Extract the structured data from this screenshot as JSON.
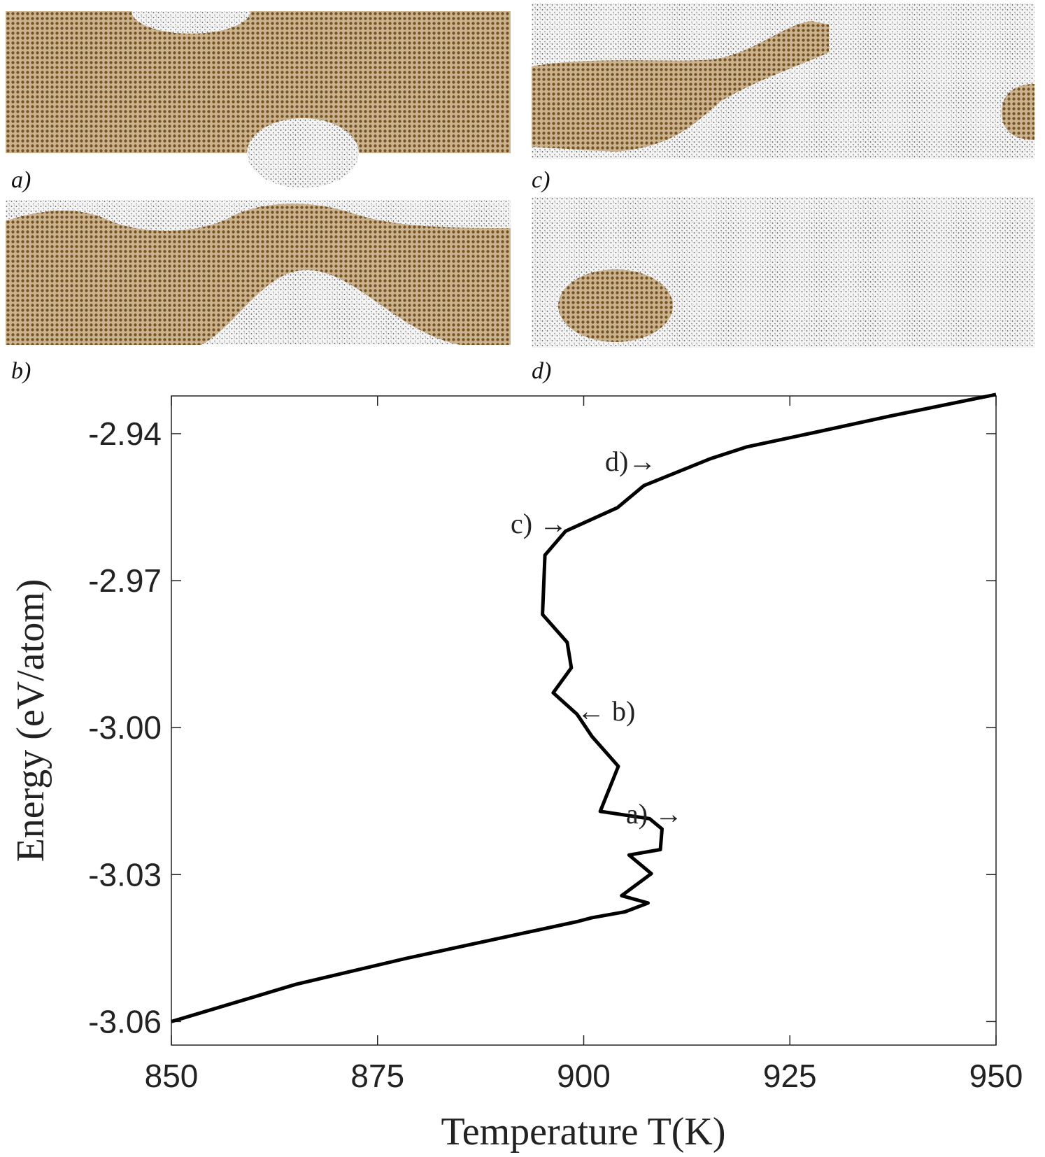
{
  "panels": [
    "a)",
    "b)",
    "c)",
    "d)"
  ],
  "chart_data": {
    "type": "line",
    "xlabel": "Temperature T(K)",
    "ylabel": "Energy (eV/atom)",
    "x": [
      850,
      865.1,
      878.5,
      892.0,
      899.2,
      901.0,
      905.0,
      907.8,
      904.6,
      908.2,
      905.5,
      909.3,
      909.5,
      908.0,
      902.0,
      904.2,
      901.0,
      899.2,
      896.3,
      898.5,
      898.0,
      895.0,
      895.3,
      897.8,
      904.1,
      907.3,
      915.4,
      919.8,
      927.9,
      936.9,
      950
    ],
    "series": [
      {
        "color": "#000000",
        "values": [
          -3.06,
          -3.0524,
          -3.0471,
          -3.0422,
          -3.0396,
          -3.0388,
          -3.0376,
          -3.0358,
          -3.0343,
          -3.0298,
          -3.026,
          -3.0249,
          -3.0207,
          -3.0186,
          -3.0171,
          -3.0079,
          -3.0018,
          -2.9973,
          -2.9929,
          -2.9878,
          -2.9826,
          -2.9769,
          -2.9648,
          -2.9599,
          -2.9551,
          -2.9506,
          -2.9451,
          -2.9427,
          -2.9398,
          -2.9365,
          -2.932
        ]
      }
    ],
    "annotations": [
      "a) →",
      "← b)",
      "c) →",
      "d)→"
    ],
    "xlim": [
      850,
      950
    ],
    "xticks": [
      850,
      875,
      900,
      925,
      950
    ],
    "ylim": [
      -3.0648,
      -2.9323
    ],
    "yticks": [
      -3.06,
      -3.03,
      {
        "value": -3,
        "label": "-3.00"
      },
      -2.97,
      -2.94
    ]
  }
}
